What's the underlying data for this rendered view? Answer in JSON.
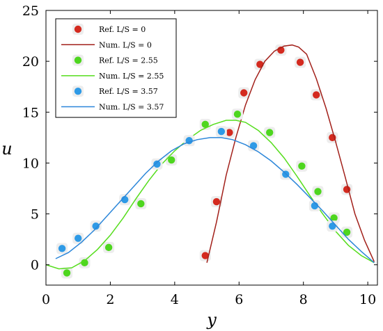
{
  "chart_data": {
    "type": "scatter",
    "xlabel": "y",
    "ylabel": "u",
    "xlim": [
      0,
      10.3
    ],
    "ylim": [
      -2,
      25
    ],
    "xticks": [
      0,
      2,
      4,
      6,
      8,
      10
    ],
    "yticks": [
      0,
      5,
      10,
      15,
      20,
      25
    ],
    "grid": false,
    "legend_position": "top-left",
    "series": [
      {
        "name": "Ref. L/S = 0",
        "kind": "points",
        "color": "#d42a1f",
        "x": [
          4.95,
          5.3,
          5.7,
          6.15,
          6.65,
          7.3,
          7.9,
          8.4,
          8.9,
          9.35
        ],
        "y": [
          0.9,
          6.2,
          13.0,
          16.9,
          19.7,
          21.1,
          19.9,
          16.7,
          12.5,
          7.4
        ]
      },
      {
        "name": "Num. L/S = 0",
        "kind": "line",
        "color": "#a2201a",
        "x": [
          5.0,
          5.3,
          5.6,
          5.9,
          6.2,
          6.5,
          6.8,
          7.1,
          7.4,
          7.65,
          7.85,
          8.1,
          8.4,
          8.7,
          9.0,
          9.3,
          9.6,
          9.9,
          10.2
        ],
        "y": [
          0.2,
          4.2,
          8.8,
          12.5,
          15.7,
          18.2,
          20.0,
          21.0,
          21.5,
          21.6,
          21.4,
          20.7,
          18.3,
          15.4,
          12.1,
          8.6,
          5.0,
          2.4,
          0.3
        ]
      },
      {
        "name": "Ref. L/S = 2.55",
        "kind": "points",
        "color": "#4ed61f",
        "x": [
          0.65,
          1.2,
          1.95,
          2.95,
          3.9,
          4.95,
          5.95,
          6.95,
          7.95,
          8.45,
          8.95,
          9.35
        ],
        "y": [
          -0.8,
          0.2,
          1.7,
          6.0,
          10.3,
          13.8,
          14.8,
          13.0,
          9.7,
          7.2,
          4.6,
          3.2
        ]
      },
      {
        "name": "Num. L/S = 2.55",
        "kind": "line",
        "color": "#55dd1c",
        "x": [
          0,
          0.4,
          0.8,
          1.2,
          1.6,
          2.0,
          2.4,
          2.8,
          3.2,
          3.6,
          4.0,
          4.4,
          4.8,
          5.2,
          5.6,
          5.9,
          6.2,
          6.6,
          7.0,
          7.4,
          7.8,
          8.2,
          8.6,
          9.0,
          9.4,
          9.8,
          10.2
        ],
        "y": [
          0.0,
          -0.4,
          -0.3,
          0.4,
          1.5,
          2.9,
          4.6,
          6.5,
          8.3,
          9.9,
          11.2,
          12.3,
          13.2,
          13.8,
          14.2,
          14.2,
          14.0,
          13.2,
          12.0,
          10.5,
          8.7,
          6.8,
          5.0,
          3.3,
          1.9,
          0.9,
          0.2
        ]
      },
      {
        "name": "Ref. L/S = 3.57",
        "kind": "points",
        "color": "#2e9ae6",
        "x": [
          0.5,
          1.0,
          1.55,
          2.45,
          3.45,
          4.45,
          5.45,
          6.45,
          7.45,
          8.35,
          8.9
        ],
        "y": [
          1.6,
          2.6,
          3.8,
          6.4,
          9.9,
          12.2,
          13.1,
          11.7,
          8.9,
          5.8,
          3.8
        ]
      },
      {
        "name": "Num. L/S = 3.57",
        "kind": "line",
        "color": "#2b86d9",
        "x": [
          0.3,
          0.7,
          1.1,
          1.5,
          1.9,
          2.3,
          2.7,
          3.1,
          3.5,
          3.9,
          4.3,
          4.7,
          5.1,
          5.45,
          5.8,
          6.2,
          6.6,
          7.0,
          7.4,
          7.8,
          8.2,
          8.6,
          9.0,
          9.4,
          9.8,
          10.2
        ],
        "y": [
          0.6,
          1.2,
          2.2,
          3.4,
          4.8,
          6.2,
          7.6,
          9.0,
          10.2,
          11.2,
          11.9,
          12.3,
          12.5,
          12.5,
          12.3,
          11.8,
          11.1,
          10.2,
          9.1,
          7.9,
          6.6,
          5.3,
          3.9,
          2.5,
          1.3,
          0.2
        ]
      }
    ]
  }
}
